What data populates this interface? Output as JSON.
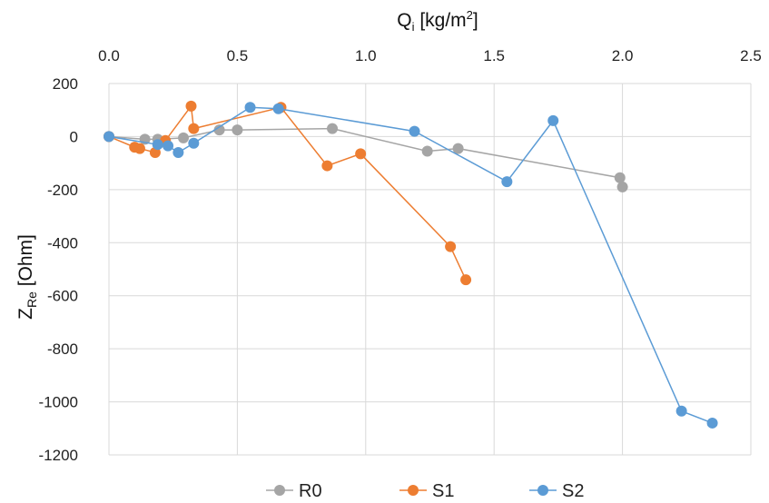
{
  "chart_data": {
    "type": "scatter",
    "x_axis": {
      "label": "Q",
      "label_sub": "i",
      "label_unit": " [kg/m",
      "label_sup": "2",
      "label_close": "]",
      "position": "top",
      "min": 0.0,
      "max": 2.5,
      "ticks": [
        "0.0",
        "0.5",
        "1.0",
        "1.5",
        "2.0",
        "2.5"
      ]
    },
    "y_axis": {
      "label": "Z",
      "label_sub": "Re",
      "label_unit": " [Ohm]",
      "min": -1200,
      "max": 200,
      "ticks": [
        "200",
        "0",
        "-200",
        "-400",
        "-600",
        "-800",
        "-1000",
        "-1200"
      ]
    },
    "grid": true,
    "legend": {
      "placement": "bottom",
      "entries": [
        "R0",
        "S1",
        "S2"
      ]
    },
    "series": [
      {
        "name": "R0",
        "color": "#a5a5a5",
        "points": [
          [
            0.0,
            0
          ],
          [
            0.14,
            -10
          ],
          [
            0.19,
            -10
          ],
          [
            0.29,
            -5
          ],
          [
            0.43,
            25
          ],
          [
            0.5,
            25
          ],
          [
            0.87,
            30
          ],
          [
            1.24,
            -55
          ],
          [
            1.36,
            -45
          ],
          [
            1.99,
            -155
          ],
          [
            2.0,
            -190
          ]
        ]
      },
      {
        "name": "S1",
        "color": "#ed7d31",
        "points": [
          [
            0.0,
            0
          ],
          [
            0.1,
            -40
          ],
          [
            0.12,
            -45
          ],
          [
            0.18,
            -60
          ],
          [
            0.22,
            -15
          ],
          [
            0.32,
            115
          ],
          [
            0.33,
            30
          ],
          [
            0.67,
            110
          ],
          [
            0.85,
            -110
          ],
          [
            0.98,
            -65
          ],
          [
            1.33,
            -415
          ],
          [
            1.39,
            -540
          ]
        ]
      },
      {
        "name": "S2",
        "color": "#5b9bd5",
        "points": [
          [
            0.0,
            0
          ],
          [
            0.19,
            -30
          ],
          [
            0.23,
            -35
          ],
          [
            0.27,
            -60
          ],
          [
            0.33,
            -25
          ],
          [
            0.55,
            110
          ],
          [
            0.66,
            105
          ],
          [
            1.19,
            20
          ],
          [
            1.55,
            -170
          ],
          [
            1.73,
            60
          ],
          [
            2.23,
            -1035
          ],
          [
            2.35,
            -1080
          ]
        ]
      }
    ]
  }
}
